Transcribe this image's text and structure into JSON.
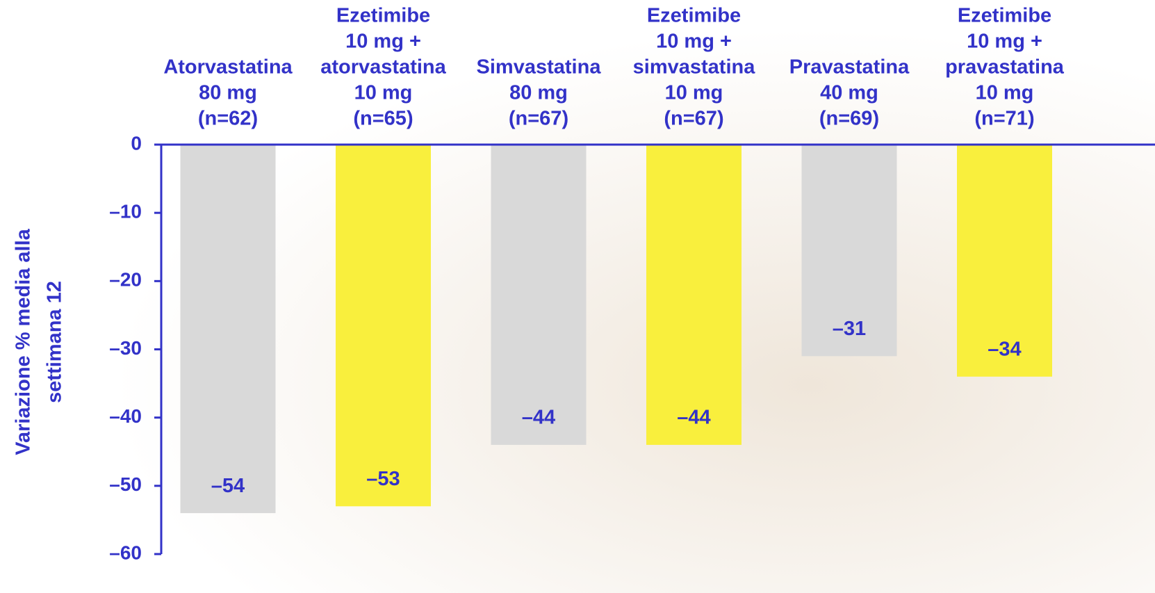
{
  "chart_data": {
    "type": "bar",
    "ylabel": [
      "Variazione % media alla",
      "settimana 12"
    ],
    "categories": [
      [
        "Atorvastatina",
        "80 mg",
        "(n=62)"
      ],
      [
        "Ezetimibe",
        "10 mg +",
        "atorvastatina",
        "10 mg",
        "(n=65)"
      ],
      [
        "Simvastatina",
        "80 mg",
        "(n=67)"
      ],
      [
        "Ezetimibe",
        "10 mg +",
        "simvastatina",
        "10 mg",
        "(n=67)"
      ],
      [
        "Pravastatina",
        "40 mg",
        "(n=69)"
      ],
      [
        "Ezetimibe",
        "10 mg +",
        "pravastatina",
        "10 mg",
        "(n=71)"
      ]
    ],
    "values": [
      -54,
      -53,
      -44,
      -44,
      -31,
      -34
    ],
    "value_labels": [
      "–54",
      "–53",
      "–44",
      "–44",
      "–31",
      "–34"
    ],
    "colors": [
      "#d9d9d9",
      "#f9ef3d",
      "#d9d9d9",
      "#f9ef3d",
      "#d9d9d9",
      "#f9ef3d"
    ],
    "ylim": [
      -60,
      0
    ],
    "yticks": [
      0,
      {
        "value": -10,
        "label": "–10"
      },
      {
        "value": -20,
        "label": "–20"
      },
      {
        "value": -30,
        "label": "–30"
      },
      {
        "value": -40,
        "label": "–40"
      },
      {
        "value": -50,
        "label": "–50"
      },
      {
        "value": -60,
        "label": "–60"
      }
    ]
  }
}
